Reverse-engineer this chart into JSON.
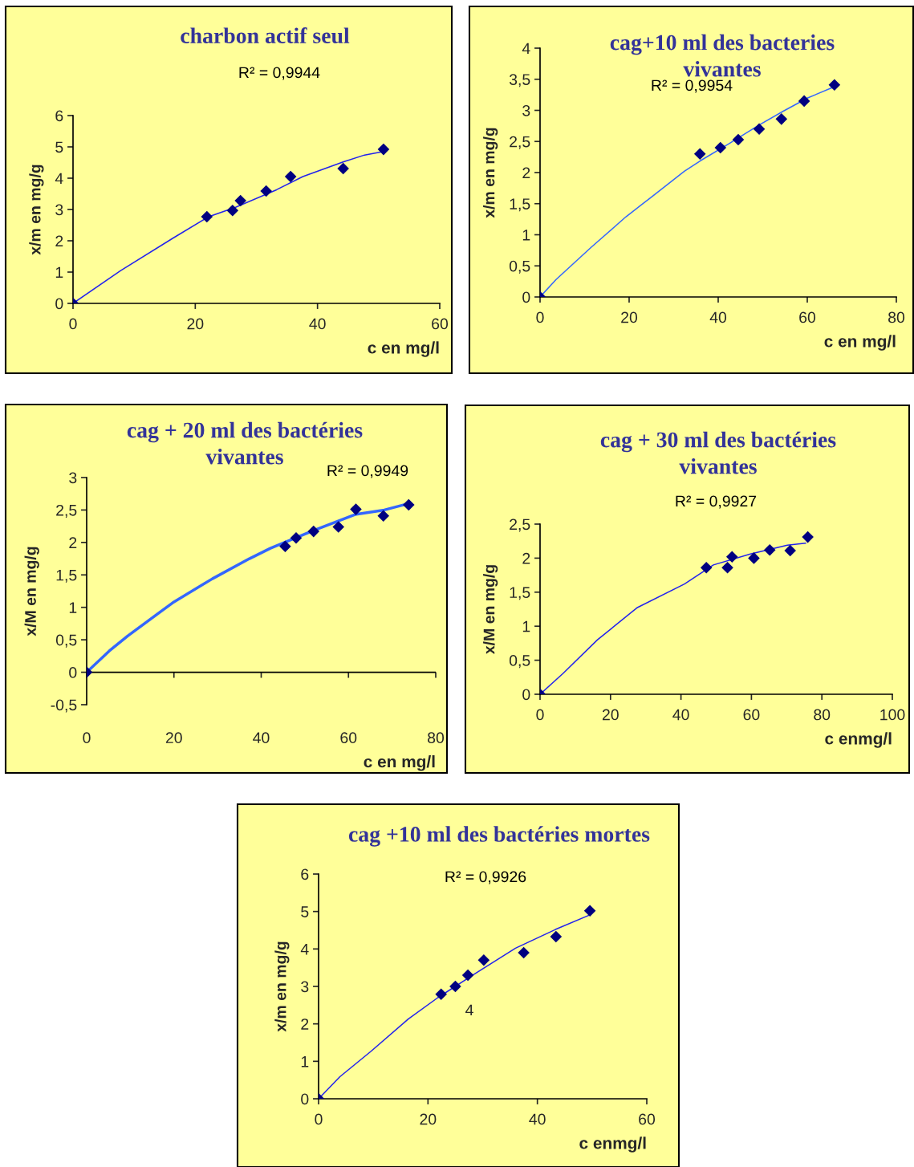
{
  "chart_data": [
    {
      "type": "scatter",
      "title": "charbon actif seul",
      "subtitle": "R² = 0,9944",
      "xlabel": "c en mg/l",
      "ylabel": "x/m en mg/g",
      "xlim": [
        0,
        60
      ],
      "ylim": [
        0,
        6
      ],
      "xticks": [
        0,
        20,
        40,
        60
      ],
      "yticks": [
        0,
        1,
        2,
        3,
        4,
        5,
        6
      ],
      "grid": false,
      "legend": false,
      "series": [
        {
          "marker": "diamond",
          "color": "#000080",
          "x": [
            0,
            21.9,
            26.1,
            27.4,
            31.6,
            35.6,
            44.2,
            50.8
          ],
          "values": [
            0,
            2.77,
            2.97,
            3.28,
            3.59,
            4.05,
            4.31,
            4.92
          ]
        },
        {
          "type": "line",
          "marker": "none",
          "line_style": "solid",
          "color": "#2222ee",
          "x": [
            0,
            7.8,
            16.4,
            22.2,
            26.6,
            33.3,
            37.6,
            44.2,
            47.7,
            51.0
          ],
          "values": [
            0,
            1.05,
            2.09,
            2.77,
            3.07,
            3.63,
            4.05,
            4.52,
            4.74,
            4.86
          ]
        }
      ]
    },
    {
      "type": "scatter",
      "title": "cag+10 ml des bacteries\nvivantes",
      "subtitle": "R² = 0,9954",
      "xlabel": "c en mg/l",
      "ylabel": "x/m en mg/g",
      "xlim": [
        0,
        80
      ],
      "ylim": [
        0,
        4
      ],
      "xticks": [
        0,
        20,
        40,
        60,
        80
      ],
      "yticks": [
        0,
        {
          "value": 0.5,
          "label": "0,5"
        },
        1,
        {
          "value": 1.5,
          "label": "1,5"
        },
        2,
        {
          "value": 2.5,
          "label": "2,5"
        },
        3,
        {
          "value": 3.5,
          "label": "3,5"
        },
        4
      ],
      "grid": false,
      "legend": false,
      "series": [
        {
          "marker": "diamond",
          "color": "#000080",
          "x": [
            0,
            35.9,
            40.5,
            44.5,
            49.2,
            54.2,
            59.3,
            66.1
          ],
          "values": [
            0,
            2.3,
            2.4,
            2.53,
            2.7,
            2.86,
            3.15,
            3.41
          ]
        },
        {
          "type": "line",
          "marker": "none",
          "line_style": "solid",
          "color": "#3366ff",
          "x": [
            0,
            3.6,
            11.5,
            19.3,
            24.7,
            32.4,
            36.0,
            42.1,
            49.3,
            54.7,
            60.1,
            66.1
          ],
          "values": [
            0,
            0.28,
            0.8,
            1.29,
            1.59,
            2.02,
            2.19,
            2.45,
            2.77,
            2.99,
            3.2,
            3.38
          ]
        }
      ]
    },
    {
      "type": "scatter",
      "title": "cag + 20 ml des bactéries\nvivantes",
      "subtitle": "R² = 0,9949",
      "xlabel": "c en mg/l",
      "ylabel": "x/M en mg/g",
      "xlim": [
        0,
        80
      ],
      "ylim": [
        -0.5,
        3
      ],
      "xticks": [
        0,
        20,
        40,
        60,
        80
      ],
      "yticks": [
        {
          "value": -0.5,
          "label": "-0,5"
        },
        0,
        {
          "value": 0.5,
          "label": "0,5"
        },
        1,
        {
          "value": 1.5,
          "label": "1,5"
        },
        2,
        {
          "value": 2.5,
          "label": "2,5"
        },
        3
      ],
      "grid": false,
      "legend": false,
      "ref_lines": [
        {
          "axis": "y",
          "value": 0,
          "color": "#000000"
        }
      ],
      "series": [
        {
          "marker": "diamond",
          "color": "#000080",
          "x": [
            0,
            45.5,
            48.0,
            52.0,
            57.7,
            61.7,
            68.0,
            73.8
          ],
          "values": [
            0,
            1.94,
            2.07,
            2.17,
            2.24,
            2.51,
            2.41,
            2.58
          ]
        },
        {
          "type": "line",
          "marker": "none",
          "line_style": "solid",
          "color": "#3366ff",
          "x": [
            0,
            5.2,
            9.4,
            19.7,
            28.8,
            37.3,
            42.1,
            51.8,
            61.5,
            68.2,
            73.8
          ],
          "values": [
            0,
            0.33,
            0.56,
            1.07,
            1.44,
            1.75,
            1.91,
            2.18,
            2.43,
            2.5,
            2.6
          ]
        }
      ]
    },
    {
      "type": "scatter",
      "title": "cag + 30 ml des bactéries\nvivantes",
      "subtitle": "R² = 0,9927",
      "xlabel": "c enmg/l",
      "ylabel": "x/M en mg/g",
      "xlim": [
        0,
        100
      ],
      "ylim": [
        0,
        2.5
      ],
      "xticks": [
        0,
        20,
        40,
        60,
        80,
        100
      ],
      "yticks": [
        0,
        {
          "value": 0.5,
          "label": "0,5"
        },
        1,
        {
          "value": 1.5,
          "label": "1,5"
        },
        2,
        {
          "value": 2.5,
          "label": "2,5"
        }
      ],
      "grid": false,
      "legend": false,
      "series": [
        {
          "marker": "diamond",
          "color": "#000080",
          "x": [
            0,
            47.2,
            53.2,
            54.5,
            60.7,
            65.2,
            71.0,
            76.0
          ],
          "values": [
            0,
            1.86,
            1.86,
            2.02,
            2.0,
            2.12,
            2.11,
            2.31
          ]
        },
        {
          "type": "line",
          "marker": "none",
          "line_style": "solid",
          "color": "#2222ee",
          "x": [
            0,
            6.6,
            16.3,
            27.5,
            41.0,
            49.2,
            59.7,
            70.2,
            75.4
          ],
          "values": [
            0,
            0.31,
            0.8,
            1.27,
            1.62,
            1.9,
            2.06,
            2.19,
            2.22
          ]
        }
      ]
    },
    {
      "type": "scatter",
      "title": "cag +10 ml des bactéries mortes",
      "subtitle": "R² = 0,9926",
      "xlabel": "c enmg/l",
      "ylabel": "x/m en mg/g",
      "xlim": [
        0,
        60
      ],
      "ylim": [
        0,
        6
      ],
      "xticks": [
        0,
        20,
        40,
        60
      ],
      "yticks": [
        0,
        1,
        2,
        3,
        4,
        5,
        6
      ],
      "grid": false,
      "legend": false,
      "annotations": [
        "4"
      ],
      "series": [
        {
          "marker": "diamond",
          "color": "#000080",
          "x": [
            0,
            22.4,
            25.0,
            27.3,
            30.2,
            37.5,
            43.4,
            49.6
          ],
          "values": [
            0,
            2.79,
            3.0,
            3.3,
            3.7,
            3.9,
            4.33,
            5.02
          ]
        },
        {
          "type": "line",
          "marker": "none",
          "line_style": "solid",
          "color": "#2222ee",
          "x": [
            0,
            3.9,
            9.6,
            16.4,
            21.8,
            28.6,
            36.0,
            43.3,
            49.6
          ],
          "values": [
            0,
            0.59,
            1.27,
            2.13,
            2.7,
            3.34,
            4.02,
            4.52,
            4.91
          ]
        }
      ]
    }
  ]
}
